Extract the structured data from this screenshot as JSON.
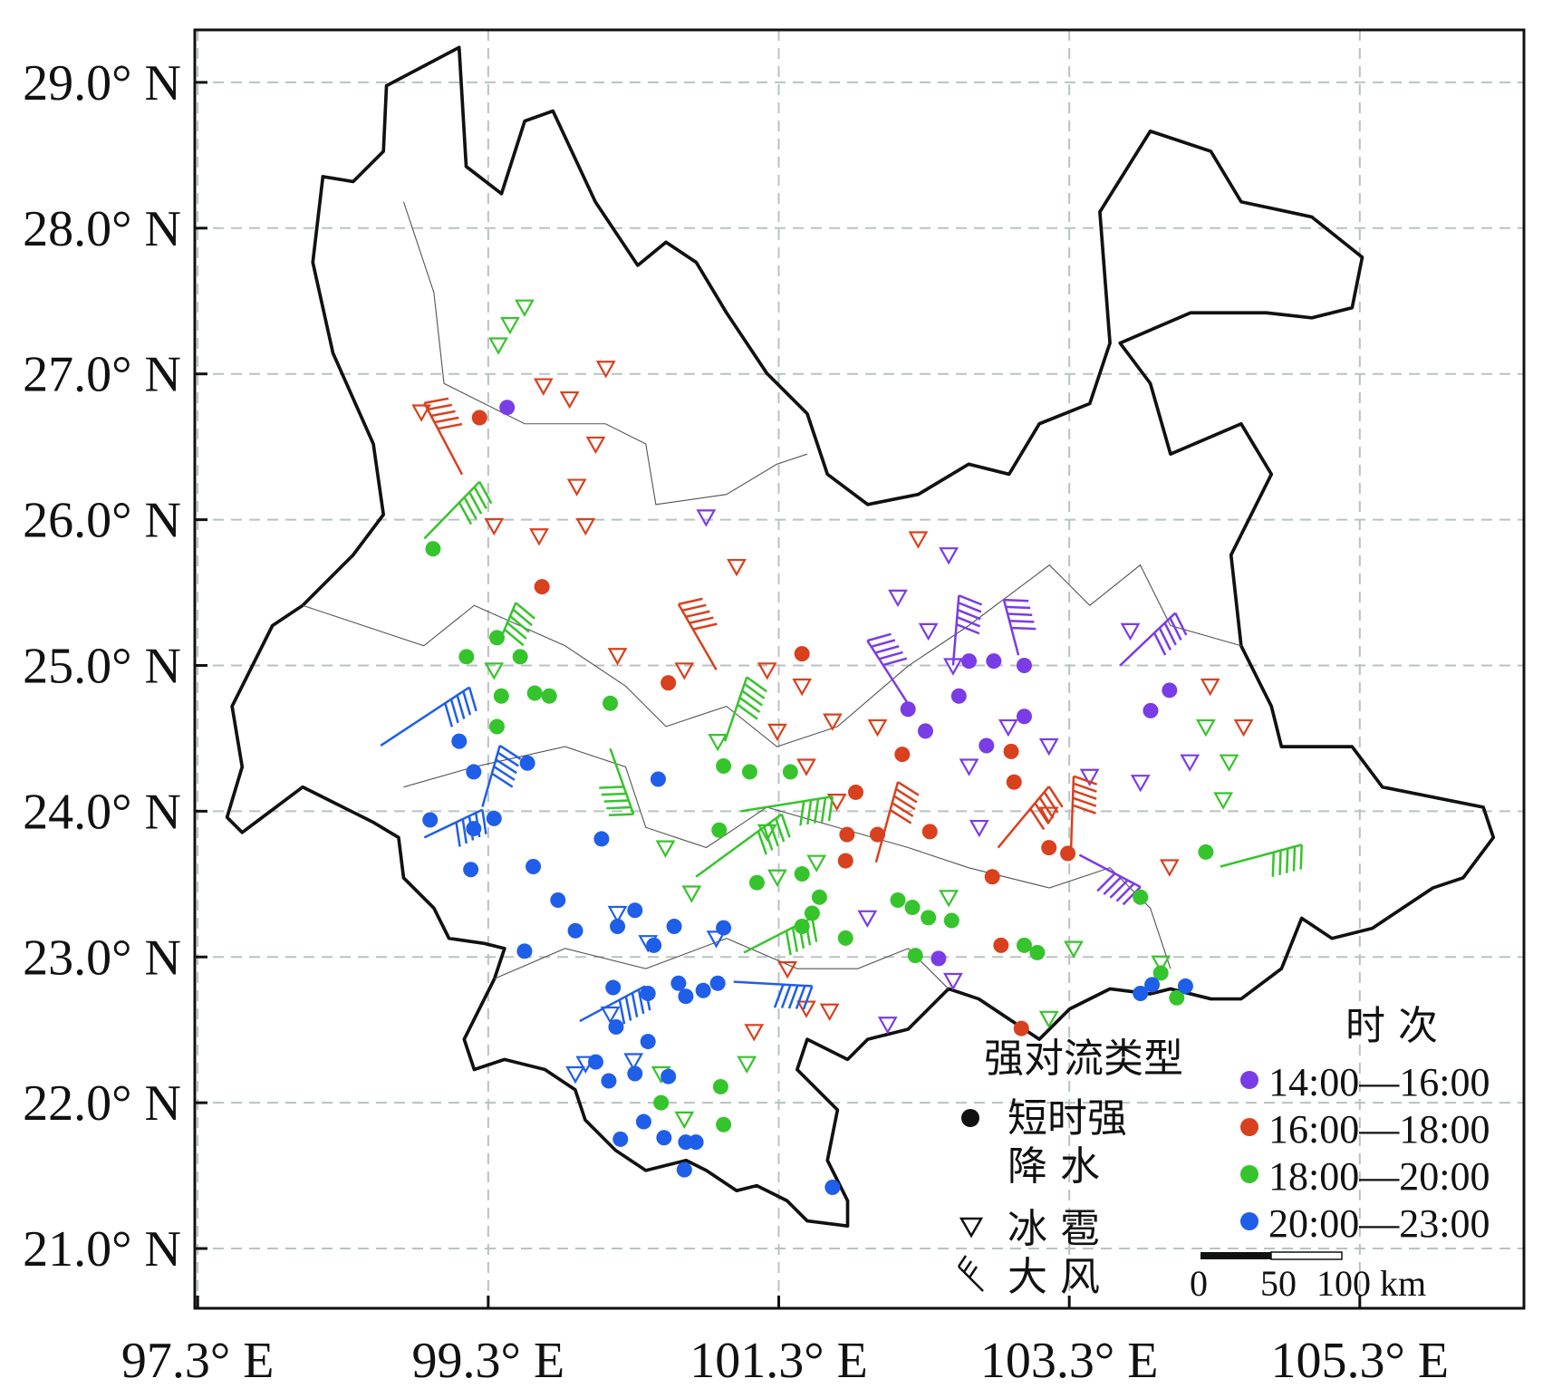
{
  "chart_data": {
    "type": "map",
    "xlim": [
      97.28,
      106.43
    ],
    "ylim": [
      20.59,
      29.36
    ],
    "xticks": [
      {
        "value": 97.3,
        "label": "97.3° E"
      },
      {
        "value": 99.3,
        "label": "99.3° E"
      },
      {
        "value": 101.3,
        "label": "101.3° E"
      },
      {
        "value": 103.3,
        "label": "103.3° E"
      },
      {
        "value": 105.3,
        "label": "105.3° E"
      }
    ],
    "yticks": [
      {
        "value": 21,
        "label": "21.0° N"
      },
      {
        "value": 22,
        "label": "22.0° N"
      },
      {
        "value": 23,
        "label": "23.0° N"
      },
      {
        "value": 24,
        "label": "24.0° N"
      },
      {
        "value": 25,
        "label": "25.0° N"
      },
      {
        "value": 26,
        "label": "26.0° N"
      },
      {
        "value": 27,
        "label": "27.0° N"
      },
      {
        "value": 28,
        "label": "28.0° N"
      },
      {
        "value": 29,
        "label": "29.0° N"
      }
    ],
    "grid": true,
    "type_title": "强对流类型",
    "type_labels": {
      "rain": [
        "短时强",
        "降  水"
      ],
      "hail": "冰 雹",
      "wind": "大 风"
    },
    "period_title": "时 次",
    "scale_ticks": [
      0,
      50,
      {
        "value": 100,
        "label": "100 km"
      }
    ],
    "series": [
      {
        "name": "14:00—16:00",
        "color": "#7a3ce6",
        "rain": [
          [
            99.43,
            26.77
          ],
          [
            102.19,
            24.7
          ],
          [
            102.4,
            22.99
          ],
          [
            102.61,
            25.03
          ],
          [
            102.73,
            24.45
          ],
          [
            102.78,
            25.03
          ],
          [
            102.99,
            25.0
          ],
          [
            102.99,
            24.65
          ],
          [
            103.86,
            24.69
          ],
          [
            103.99,
            24.83
          ],
          [
            102.54,
            24.79
          ],
          [
            102.31,
            24.55
          ]
        ],
        "hail": [
          [
            100.8,
            26.02
          ],
          [
            102.47,
            25.76
          ],
          [
            102.12,
            25.47
          ],
          [
            102.33,
            25.24
          ],
          [
            102.5,
            25.0
          ],
          [
            102.88,
            24.58
          ],
          [
            102.61,
            24.31
          ],
          [
            103.16,
            24.45
          ],
          [
            103.44,
            24.24
          ],
          [
            103.79,
            24.2
          ],
          [
            104.13,
            24.34
          ],
          [
            101.91,
            23.27
          ],
          [
            102.05,
            22.54
          ],
          [
            102.5,
            22.84
          ],
          [
            103.72,
            25.24
          ],
          [
            102.68,
            23.89
          ]
        ],
        "wind": [
          [
            103.65,
            25.0,
            104.03,
            25.36
          ],
          [
            102.22,
            24.69,
            101.91,
            25.17
          ],
          [
            102.5,
            25.0,
            102.54,
            25.48
          ],
          [
            102.95,
            25.07,
            102.85,
            25.45
          ],
          [
            103.37,
            23.7,
            103.79,
            23.48
          ]
        ]
      },
      {
        "name": "16:00—18:00",
        "color": "#d9401e",
        "rain": [
          [
            99.24,
            26.7
          ],
          [
            99.67,
            25.54
          ],
          [
            100.54,
            24.88
          ],
          [
            101.46,
            25.08
          ],
          [
            101.77,
            23.84
          ],
          [
            101.83,
            24.13
          ],
          [
            102.15,
            24.39
          ],
          [
            102.9,
            24.41
          ],
          [
            102.92,
            24.2
          ],
          [
            102.77,
            23.55
          ],
          [
            102.83,
            23.08
          ],
          [
            102.97,
            22.51
          ],
          [
            103.16,
            23.75
          ],
          [
            103.29,
            23.71
          ],
          [
            101.98,
            23.84
          ],
          [
            102.34,
            23.86
          ],
          [
            101.76,
            23.66
          ]
        ],
        "hail": [
          [
            98.84,
            26.74
          ],
          [
            99.68,
            26.92
          ],
          [
            99.86,
            26.83
          ],
          [
            100.11,
            27.04
          ],
          [
            100.04,
            26.52
          ],
          [
            99.91,
            26.23
          ],
          [
            99.97,
            25.96
          ],
          [
            99.34,
            25.96
          ],
          [
            99.65,
            25.89
          ],
          [
            101.01,
            25.68
          ],
          [
            100.19,
            25.07
          ],
          [
            100.65,
            24.97
          ],
          [
            101.22,
            24.97
          ],
          [
            101.29,
            24.55
          ],
          [
            101.46,
            24.86
          ],
          [
            101.67,
            24.62
          ],
          [
            101.98,
            24.58
          ],
          [
            102.26,
            25.87
          ],
          [
            104.27,
            24.86
          ],
          [
            104.5,
            24.58
          ],
          [
            103.99,
            23.62
          ],
          [
            101.7,
            24.07
          ],
          [
            101.36,
            22.92
          ],
          [
            101.49,
            22.65
          ],
          [
            101.13,
            22.49
          ],
          [
            101.65,
            22.63
          ],
          [
            101.49,
            24.31
          ],
          [
            103.16,
            23.98
          ]
        ],
        "wind": [
          [
            99.12,
            26.31,
            98.86,
            26.8
          ],
          [
            100.87,
            24.97,
            100.61,
            25.42
          ],
          [
            101.97,
            23.65,
            102.12,
            24.2
          ],
          [
            103.31,
            23.69,
            103.33,
            24.24
          ],
          [
            102.81,
            23.75,
            103.16,
            24.17
          ]
        ]
      },
      {
        "name": "18:00—20:00",
        "color": "#36c42c",
        "rain": [
          [
            98.92,
            25.8
          ],
          [
            99.15,
            25.06
          ],
          [
            99.36,
            25.19
          ],
          [
            99.52,
            25.06
          ],
          [
            99.39,
            24.79
          ],
          [
            99.36,
            24.58
          ],
          [
            99.62,
            24.81
          ],
          [
            99.72,
            24.79
          ],
          [
            100.14,
            24.74
          ],
          [
            100.92,
            24.31
          ],
          [
            101.1,
            24.27
          ],
          [
            101.38,
            24.27
          ],
          [
            100.89,
            23.87
          ],
          [
            101.15,
            23.51
          ],
          [
            101.46,
            23.57
          ],
          [
            101.53,
            23.3
          ],
          [
            101.46,
            23.21
          ],
          [
            101.76,
            23.13
          ],
          [
            102.12,
            23.39
          ],
          [
            102.22,
            23.34
          ],
          [
            102.33,
            23.27
          ],
          [
            102.49,
            23.25
          ],
          [
            102.24,
            23.01
          ],
          [
            102.99,
            23.08
          ],
          [
            103.08,
            23.03
          ],
          [
            103.79,
            23.41
          ],
          [
            104.24,
            23.72
          ],
          [
            103.93,
            22.89
          ],
          [
            104.04,
            22.72
          ],
          [
            100.9,
            22.11
          ],
          [
            100.92,
            21.85
          ],
          [
            100.49,
            22.0
          ],
          [
            101.58,
            23.41
          ]
        ],
        "hail": [
          [
            99.55,
            27.46
          ],
          [
            99.45,
            27.34
          ],
          [
            99.37,
            27.2
          ],
          [
            99.34,
            24.97
          ],
          [
            100.88,
            24.48
          ],
          [
            101.22,
            23.86
          ],
          [
            100.52,
            23.75
          ],
          [
            100.7,
            23.44
          ],
          [
            101.29,
            23.55
          ],
          [
            101.56,
            23.65
          ],
          [
            102.47,
            23.41
          ],
          [
            104.24,
            24.58
          ],
          [
            104.4,
            24.34
          ],
          [
            104.36,
            24.08
          ],
          [
            103.16,
            22.58
          ],
          [
            103.33,
            23.06
          ],
          [
            103.93,
            22.96
          ],
          [
            101.08,
            22.27
          ],
          [
            100.65,
            21.89
          ],
          [
            100.49,
            22.2
          ]
        ],
        "wind": [
          [
            98.86,
            25.87,
            99.24,
            26.26
          ],
          [
            99.38,
            25.17,
            99.49,
            25.43
          ],
          [
            100.93,
            24.48,
            101.08,
            24.92
          ],
          [
            100.14,
            24.43,
            100.3,
            23.98
          ],
          [
            100.73,
            23.55,
            101.32,
            23.98
          ],
          [
            104.34,
            23.62,
            104.9,
            23.77
          ],
          [
            101.06,
            23.03,
            101.53,
            23.27
          ],
          [
            101.04,
            24.0,
            101.67,
            24.1
          ]
        ]
      },
      {
        "name": "20:00—23:00",
        "color": "#1f5ee8",
        "rain": [
          [
            99.1,
            24.48
          ],
          [
            99.2,
            24.27
          ],
          [
            99.57,
            24.33
          ],
          [
            98.9,
            23.94
          ],
          [
            99.34,
            23.95
          ],
          [
            99.2,
            23.88
          ],
          [
            99.18,
            23.6
          ],
          [
            99.61,
            23.62
          ],
          [
            99.78,
            23.39
          ],
          [
            99.9,
            23.18
          ],
          [
            100.08,
            23.81
          ],
          [
            100.47,
            24.22
          ],
          [
            100.31,
            23.32
          ],
          [
            100.44,
            23.08
          ],
          [
            100.58,
            23.21
          ],
          [
            100.19,
            23.21
          ],
          [
            99.55,
            23.04
          ],
          [
            100.16,
            22.79
          ],
          [
            100.18,
            22.52
          ],
          [
            100.4,
            22.42
          ],
          [
            100.04,
            22.28
          ],
          [
            100.13,
            22.15
          ],
          [
            100.31,
            22.2
          ],
          [
            100.54,
            22.18
          ],
          [
            100.37,
            21.87
          ],
          [
            100.51,
            21.76
          ],
          [
            100.21,
            21.75
          ],
          [
            100.66,
            21.73
          ],
          [
            100.73,
            21.73
          ],
          [
            100.65,
            21.54
          ],
          [
            101.67,
            21.42
          ],
          [
            100.4,
            22.75
          ],
          [
            100.66,
            22.73
          ],
          [
            100.78,
            22.77
          ],
          [
            100.88,
            22.82
          ],
          [
            100.61,
            22.82
          ],
          [
            103.79,
            22.75
          ],
          [
            103.87,
            22.81
          ],
          [
            104.1,
            22.8
          ],
          [
            100.92,
            23.2
          ]
        ],
        "hail": [
          [
            100.19,
            23.3
          ],
          [
            100.4,
            23.1
          ],
          [
            99.9,
            22.2
          ],
          [
            99.97,
            22.27
          ],
          [
            100.3,
            22.29
          ],
          [
            100.87,
            23.13
          ],
          [
            100.14,
            22.61
          ]
        ],
        "wind": [
          [
            98.56,
            24.45,
            99.17,
            24.85
          ],
          [
            99.26,
            24.03,
            99.38,
            24.45
          ],
          [
            98.86,
            23.82,
            99.26,
            24.01
          ],
          [
            99.93,
            22.56,
            100.38,
            22.8
          ],
          [
            100.99,
            22.83,
            101.53,
            22.8
          ]
        ]
      }
    ]
  }
}
